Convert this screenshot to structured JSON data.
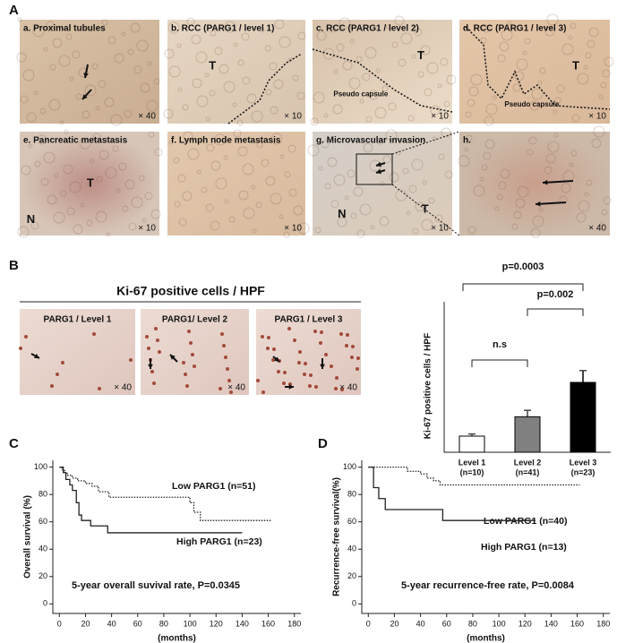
{
  "figure": {
    "panel_a": {
      "label": "A",
      "images": [
        {
          "caption": "a. Proximal tubules",
          "mag": "× 40"
        },
        {
          "caption": "b. RCC (PARG1 / level 1)",
          "mag": "× 10",
          "marks": [
            "T"
          ]
        },
        {
          "caption": "c. RCC (PARG1 / level 2)",
          "mag": "× 10",
          "marks": [
            "T",
            "Pseudo capsule"
          ]
        },
        {
          "caption": "d. RCC (PARG1 / level 3)",
          "mag": "× 10",
          "marks": [
            "T",
            "Pseudo capsule"
          ]
        },
        {
          "caption": "e. Pancreatic metastasis",
          "mag": "× 10",
          "marks": [
            "T",
            "N"
          ]
        },
        {
          "caption": "f. Lymph node metastasis",
          "mag": "× 10"
        },
        {
          "caption": "g. Microvascular invasion",
          "mag": "× 10",
          "marks": [
            "N",
            "T"
          ]
        },
        {
          "caption": "h.",
          "mag": "× 40"
        }
      ]
    },
    "panel_b": {
      "label": "B",
      "title": "Ki-67 positive cells / HPF",
      "images": [
        {
          "caption": "PARG1  / Level 1",
          "mag": "× 40"
        },
        {
          "caption": "PARG1/ Level 2",
          "mag": "× 40"
        },
        {
          "caption": "PARG1 / Level 3",
          "mag": "× 40"
        }
      ]
    },
    "panel_c": {
      "label": "C"
    },
    "panel_d": {
      "label": "D"
    }
  },
  "chart_data": [
    {
      "type": "bar",
      "ylabel": "Ki-67 positive cells / HPF",
      "categories": [
        "Level 1",
        "Level 2",
        "Level 3"
      ],
      "category_counts": [
        "(n=10)",
        "(n=41)",
        "(n=23)"
      ],
      "values": [
        7.5,
        16.5,
        32.5
      ],
      "errors": [
        1,
        3,
        5.5
      ],
      "colors": [
        "#ffffff",
        "#808080",
        "#000000"
      ],
      "ylim": [
        0,
        70
      ],
      "annotations": [
        "n.s",
        "p=0.002",
        "p=0.0003"
      ]
    },
    {
      "type": "km",
      "ylabel": "Overall survival (%)",
      "xlabel": "(months)",
      "annotation": "5-year overall suvival rate, P=0.0345",
      "xlim": [
        -5,
        185
      ],
      "ylim": [
        -7,
        105
      ],
      "xticks": [
        0,
        20,
        40,
        60,
        80,
        100,
        120,
        140,
        160,
        180
      ],
      "yticks": [
        0,
        20,
        40,
        60,
        80,
        100
      ],
      "series": [
        {
          "name": "Low PARG1 (n=51)",
          "color": "#222222",
          "style": "dotted",
          "x": [
            0,
            2,
            4,
            6,
            10,
            14,
            20,
            25,
            30,
            38,
            100,
            103,
            108,
            162
          ],
          "values": [
            100,
            98,
            96,
            94,
            92,
            90,
            88,
            86,
            82,
            78,
            74,
            67,
            61,
            61
          ]
        },
        {
          "name": "High PARG1 (n=23)",
          "color": "#222222",
          "style": "solid",
          "x": [
            0,
            3,
            5,
            8,
            10,
            13,
            15,
            17,
            24,
            37,
            140
          ],
          "values": [
            100,
            96,
            91,
            87,
            83,
            74,
            65,
            61,
            57,
            52,
            52
          ]
        }
      ]
    },
    {
      "type": "km",
      "ylabel": "Recurrence-free survival(%)",
      "xlabel": "(months)",
      "annotation": "5-year recurrence-free rate, P=0.0084",
      "xlim": [
        -5,
        185
      ],
      "ylim": [
        -7,
        105
      ],
      "xticks": [
        0,
        20,
        40,
        60,
        80,
        100,
        120,
        140,
        160,
        180
      ],
      "yticks": [
        0,
        20,
        40,
        60,
        80,
        100
      ],
      "series": [
        {
          "name": "Low PARG1 (n=40)",
          "color": "#222222",
          "style": "dotted",
          "x": [
            0,
            30,
            40,
            45,
            50,
            55,
            162
          ],
          "values": [
            100,
            97,
            95,
            92,
            90,
            87,
            87
          ]
        },
        {
          "name": "High PARG1 (n=13)",
          "color": "#222222",
          "style": "solid",
          "x": [
            0,
            4,
            8,
            13,
            57,
            128
          ],
          "values": [
            100,
            85,
            77,
            69,
            61,
            61
          ]
        }
      ]
    }
  ]
}
